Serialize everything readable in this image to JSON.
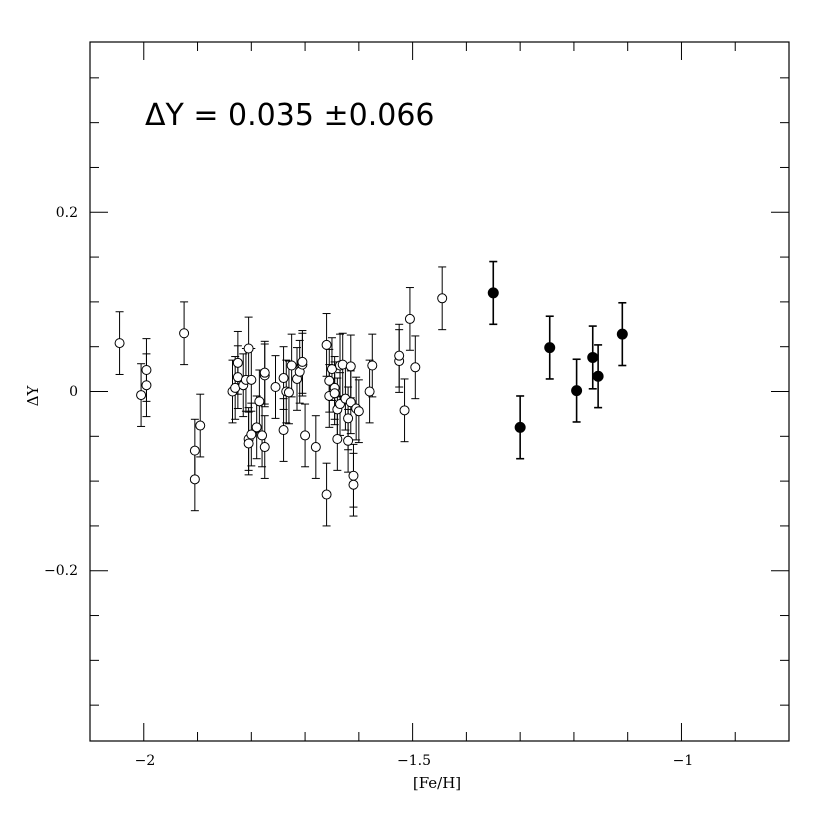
{
  "chart_data": {
    "type": "scatter",
    "xlabel": "[Fe/H]",
    "ylabel": "ΔY",
    "annotation": "ΔY  =  0.035  ±0.066",
    "xlim": [
      -2.1,
      -0.8
    ],
    "ylim": [
      -0.39,
      0.39
    ],
    "x_ticks": [
      -2,
      -1.5,
      -1
    ],
    "x_tick_labels": [
      "−2",
      "−1.5",
      "−1"
    ],
    "y_ticks": [
      -0.2,
      0,
      0.2
    ],
    "y_tick_labels": [
      "−0.2",
      "0",
      "0.2"
    ],
    "grid": false,
    "series": [
      {
        "marker": "open-circle",
        "color": "#000000",
        "points": [
          [
            -2.045,
            0.054,
            0.035
          ],
          [
            -2.005,
            -0.004,
            0.035
          ],
          [
            -1.995,
            0.007,
            0.035
          ],
          [
            -1.995,
            0.024,
            0.035
          ],
          [
            -1.925,
            0.065,
            0.035
          ],
          [
            -1.905,
            -0.066,
            0.035
          ],
          [
            -1.905,
            -0.098,
            0.035
          ],
          [
            -1.895,
            -0.038,
            0.035
          ],
          [
            -1.835,
            0.0,
            0.035
          ],
          [
            -1.83,
            0.004,
            0.035
          ],
          [
            -1.825,
            0.016,
            0.035
          ],
          [
            -1.825,
            0.032,
            0.035
          ],
          [
            -1.815,
            0.007,
            0.035
          ],
          [
            -1.81,
            0.013,
            0.035
          ],
          [
            -1.805,
            0.048,
            0.035
          ],
          [
            -1.805,
            -0.053,
            0.035
          ],
          [
            -1.805,
            -0.058,
            0.035
          ],
          [
            -1.8,
            -0.048,
            0.035
          ],
          [
            -1.8,
            0.013,
            0.035
          ],
          [
            -1.79,
            -0.04,
            0.035
          ],
          [
            -1.785,
            -0.011,
            0.035
          ],
          [
            -1.78,
            -0.049,
            0.035
          ],
          [
            -1.775,
            0.018,
            0.035
          ],
          [
            -1.775,
            0.021,
            0.035
          ],
          [
            -1.775,
            -0.062,
            0.035
          ],
          [
            -1.755,
            0.005,
            0.035
          ],
          [
            -1.74,
            0.015,
            0.035
          ],
          [
            -1.74,
            -0.043,
            0.035
          ],
          [
            -1.735,
            0.0,
            0.035
          ],
          [
            -1.73,
            -0.001,
            0.035
          ],
          [
            -1.725,
            0.029,
            0.035
          ],
          [
            -1.715,
            0.014,
            0.035
          ],
          [
            -1.71,
            0.022,
            0.035
          ],
          [
            -1.705,
            0.03,
            0.035
          ],
          [
            -1.705,
            0.033,
            0.035
          ],
          [
            -1.7,
            -0.049,
            0.035
          ],
          [
            -1.68,
            -0.062,
            0.035
          ],
          [
            -1.66,
            0.052,
            0.035
          ],
          [
            -1.66,
            -0.115,
            0.035
          ],
          [
            -1.655,
            0.012,
            0.035
          ],
          [
            -1.655,
            -0.005,
            0.035
          ],
          [
            -1.65,
            0.025,
            0.035
          ],
          [
            -1.645,
            0.004,
            0.035
          ],
          [
            -1.645,
            -0.002,
            0.035
          ],
          [
            -1.64,
            -0.02,
            0.035
          ],
          [
            -1.64,
            -0.053,
            0.035
          ],
          [
            -1.635,
            0.029,
            0.035
          ],
          [
            -1.635,
            -0.014,
            0.035
          ],
          [
            -1.63,
            0.03,
            0.035
          ],
          [
            -1.625,
            -0.008,
            0.035
          ],
          [
            -1.62,
            -0.03,
            0.035
          ],
          [
            -1.62,
            -0.055,
            0.035
          ],
          [
            -1.615,
            0.028,
            0.035
          ],
          [
            -1.615,
            -0.012,
            0.035
          ],
          [
            -1.61,
            -0.094,
            0.035
          ],
          [
            -1.61,
            -0.104,
            0.035
          ],
          [
            -1.605,
            -0.019,
            0.035
          ],
          [
            -1.6,
            -0.022,
            0.035
          ],
          [
            -1.58,
            0.0,
            0.035
          ],
          [
            -1.575,
            0.029,
            0.035
          ],
          [
            -1.525,
            0.034,
            0.035
          ],
          [
            -1.525,
            0.04,
            0.035
          ],
          [
            -1.515,
            -0.021,
            0.035
          ],
          [
            -1.505,
            0.081,
            0.035
          ],
          [
            -1.495,
            0.027,
            0.035
          ],
          [
            -1.445,
            0.104,
            0.035
          ]
        ]
      },
      {
        "marker": "filled-circle",
        "color": "#000000",
        "points": [
          [
            -1.35,
            0.11,
            0.035
          ],
          [
            -1.3,
            -0.04,
            0.035
          ],
          [
            -1.245,
            0.049,
            0.035
          ],
          [
            -1.195,
            0.001,
            0.035
          ],
          [
            -1.165,
            0.038,
            0.035
          ],
          [
            -1.155,
            0.017,
            0.035
          ],
          [
            -1.11,
            0.064,
            0.035
          ]
        ]
      }
    ]
  }
}
